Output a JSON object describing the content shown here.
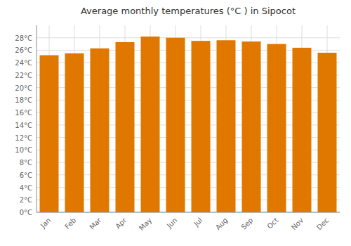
{
  "chart_data": {
    "type": "bar",
    "title": "Average monthly temperatures (°C ) in Sipocot",
    "categories": [
      "Jan",
      "Feb",
      "Mar",
      "Apr",
      "May",
      "Jun",
      "Jul",
      "Aug",
      "Sep",
      "Oct",
      "Nov",
      "Dec"
    ],
    "values": [
      25.2,
      25.5,
      26.3,
      27.3,
      28.2,
      28.0,
      27.5,
      27.6,
      27.4,
      27.0,
      26.4,
      25.6
    ],
    "color": "#E07800",
    "ylim": [
      0,
      30
    ],
    "yticks": [
      {
        "value": 0,
        "label": "0°C"
      },
      {
        "value": 2,
        "label": "2°C"
      },
      {
        "value": 4,
        "label": "4°C"
      },
      {
        "value": 6,
        "label": "6°C"
      },
      {
        "value": 8,
        "label": "8°C"
      },
      {
        "value": 10,
        "label": "10°C"
      },
      {
        "value": 12,
        "label": "12°C"
      },
      {
        "value": 14,
        "label": "14°C"
      },
      {
        "value": 16,
        "label": "16°C"
      },
      {
        "value": 18,
        "label": "18°C"
      },
      {
        "value": 20,
        "label": "20°C"
      },
      {
        "value": 22,
        "label": "22°C"
      },
      {
        "value": 24,
        "label": "24°C"
      },
      {
        "value": 26,
        "label": "26°C"
      },
      {
        "value": 28,
        "label": "28°C"
      }
    ],
    "grid": true
  }
}
